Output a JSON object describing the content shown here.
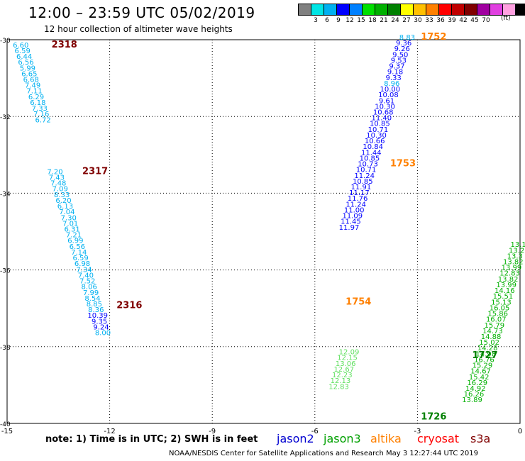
{
  "header": {
    "title": "12:00 – 23:59 UTC 05/02/2019",
    "subtitle": "12 hour collection of altimeter wave heights"
  },
  "legend": {
    "unit": "(ft)",
    "colors": [
      "#808080",
      "#00e5e5",
      "#00b0f0",
      "#0000ff",
      "#0080ff",
      "#00e000",
      "#00b000",
      "#008000",
      "#ffff00",
      "#ffc000",
      "#ff8000",
      "#ff0000",
      "#c00000",
      "#800000",
      "#a000a0",
      "#e040e0",
      "#ffa0e0",
      "#000000"
    ],
    "labels": [
      "3",
      "6",
      "9",
      "12",
      "15",
      "18",
      "21",
      "24",
      "27",
      "30",
      "33",
      "36",
      "39",
      "42",
      "45",
      "70"
    ]
  },
  "chart_data": {
    "type": "scatter",
    "xlim": [
      -15,
      0
    ],
    "ylim": [
      -40,
      -30
    ],
    "x_ticks": [
      "-15",
      "-12",
      "-9",
      "-6",
      "-3",
      "0"
    ],
    "y_ticks": [
      "-30",
      "-32",
      "-34",
      "-36",
      "-38",
      "-40"
    ],
    "grid": true,
    "track_labels": [
      {
        "text": "2318",
        "x": -13.7,
        "y": -30.2,
        "color": "#800000"
      },
      {
        "text": "2317",
        "x": -12.8,
        "y": -33.5,
        "color": "#800000"
      },
      {
        "text": "2316",
        "x": -11.8,
        "y": -37.0,
        "color": "#800000"
      },
      {
        "text": "1752",
        "x": -2.9,
        "y": -30.0,
        "color": "#ff8000"
      },
      {
        "text": "1753",
        "x": -3.8,
        "y": -33.3,
        "color": "#ff8000"
      },
      {
        "text": "1754",
        "x": -5.1,
        "y": -36.9,
        "color": "#ff8000"
      },
      {
        "text": "1727",
        "x": -1.4,
        "y": -38.3,
        "color": "#008000"
      },
      {
        "text": "1726",
        "x": -2.9,
        "y": -39.9,
        "color": "#008000"
      }
    ],
    "series": [
      {
        "name": "s3a",
        "color_hi": "#0000ff",
        "color_lo": "#00b0f0",
        "points": [
          {
            "x": -14.6,
            "y": -30.2,
            "v": "6.60"
          },
          {
            "x": -14.55,
            "y": -30.35,
            "v": "6.59"
          },
          {
            "x": -14.5,
            "y": -30.5,
            "v": "6.44"
          },
          {
            "x": -14.45,
            "y": -30.65,
            "v": "6.56"
          },
          {
            "x": -14.4,
            "y": -30.8,
            "v": "5.99"
          },
          {
            "x": -14.35,
            "y": -30.95,
            "v": "6.65"
          },
          {
            "x": -14.3,
            "y": -31.1,
            "v": "6.68"
          },
          {
            "x": -14.25,
            "y": -31.25,
            "v": "7.49"
          },
          {
            "x": -14.2,
            "y": -31.4,
            "v": "7.11"
          },
          {
            "x": -14.15,
            "y": -31.55,
            "v": "6.29"
          },
          {
            "x": -14.1,
            "y": -31.7,
            "v": "6.18"
          },
          {
            "x": -14.05,
            "y": -31.85,
            "v": "7.33"
          },
          {
            "x": -14.0,
            "y": -32.0,
            "v": "7.16"
          },
          {
            "x": -13.95,
            "y": -32.15,
            "v": "6.72"
          },
          {
            "x": -13.6,
            "y": -33.5,
            "v": "7.20"
          },
          {
            "x": -13.55,
            "y": -33.65,
            "v": "7.43"
          },
          {
            "x": -13.5,
            "y": -33.8,
            "v": "7.48"
          },
          {
            "x": -13.45,
            "y": -33.95,
            "v": "7.09"
          },
          {
            "x": -13.4,
            "y": -34.1,
            "v": "8.33"
          },
          {
            "x": -13.35,
            "y": -34.25,
            "v": "6.20"
          },
          {
            "x": -13.3,
            "y": -34.4,
            "v": "6.13"
          },
          {
            "x": -13.25,
            "y": -34.55,
            "v": "7.04"
          },
          {
            "x": -13.2,
            "y": -34.7,
            "v": "7.30"
          },
          {
            "x": -13.15,
            "y": -34.85,
            "v": "7.01"
          },
          {
            "x": -13.1,
            "y": -35.0,
            "v": "6.31"
          },
          {
            "x": -13.05,
            "y": -35.15,
            "v": "7.21"
          },
          {
            "x": -13.0,
            "y": -35.3,
            "v": "6.99"
          },
          {
            "x": -12.95,
            "y": -35.45,
            "v": "6.56"
          },
          {
            "x": -12.9,
            "y": -35.6,
            "v": "7.14"
          },
          {
            "x": -12.85,
            "y": -35.75,
            "v": "6.59"
          },
          {
            "x": -12.8,
            "y": -35.9,
            "v": "6.98"
          },
          {
            "x": -12.75,
            "y": -36.05,
            "v": "7.34"
          },
          {
            "x": -12.7,
            "y": -36.2,
            "v": "7.40"
          },
          {
            "x": -12.65,
            "y": -36.35,
            "v": "7.52"
          },
          {
            "x": -12.6,
            "y": -36.5,
            "v": "8.06"
          },
          {
            "x": -12.55,
            "y": -36.65,
            "v": "7.99"
          },
          {
            "x": -12.5,
            "y": -36.8,
            "v": "8.54"
          },
          {
            "x": -12.45,
            "y": -36.95,
            "v": "8.85"
          },
          {
            "x": -12.4,
            "y": -37.1,
            "v": "8.36"
          },
          {
            "x": -12.35,
            "y": -37.25,
            "v": "10.39"
          },
          {
            "x": -12.3,
            "y": -37.4,
            "v": "9.35"
          },
          {
            "x": -12.25,
            "y": -37.55,
            "v": "9.24"
          },
          {
            "x": -12.2,
            "y": -37.7,
            "v": "8.00"
          }
        ]
      },
      {
        "name": "altika",
        "color_hi": "#0000ff",
        "color_lo": "#00b0f0",
        "points": [
          {
            "x": -3.3,
            "y": -30.0,
            "v": "8.83"
          },
          {
            "x": -3.4,
            "y": -30.15,
            "v": "9.36"
          },
          {
            "x": -3.45,
            "y": -30.3,
            "v": "9.26"
          },
          {
            "x": -3.5,
            "y": -30.45,
            "v": "9.50"
          },
          {
            "x": -3.55,
            "y": -30.6,
            "v": "9.53"
          },
          {
            "x": -3.6,
            "y": -30.75,
            "v": "9.37"
          },
          {
            "x": -3.65,
            "y": -30.9,
            "v": "9.18"
          },
          {
            "x": -3.7,
            "y": -31.05,
            "v": "9.33"
          },
          {
            "x": -3.75,
            "y": -31.2,
            "v": "8.96"
          },
          {
            "x": -3.8,
            "y": -31.35,
            "v": "10.00"
          },
          {
            "x": -3.85,
            "y": -31.5,
            "v": "10.08"
          },
          {
            "x": -3.9,
            "y": -31.65,
            "v": "9.61"
          },
          {
            "x": -3.95,
            "y": -31.8,
            "v": "10.30"
          },
          {
            "x": -4.0,
            "y": -31.95,
            "v": "10.68"
          },
          {
            "x": -4.05,
            "y": -32.1,
            "v": "11.40"
          },
          {
            "x": -4.1,
            "y": -32.25,
            "v": "10.85"
          },
          {
            "x": -4.15,
            "y": -32.4,
            "v": "10.71"
          },
          {
            "x": -4.2,
            "y": -32.55,
            "v": "10.30"
          },
          {
            "x": -4.25,
            "y": -32.7,
            "v": "10.66"
          },
          {
            "x": -4.3,
            "y": -32.85,
            "v": "10.84"
          },
          {
            "x": -4.35,
            "y": -33.0,
            "v": "11.44"
          },
          {
            "x": -4.4,
            "y": -33.15,
            "v": "10.85"
          },
          {
            "x": -4.45,
            "y": -33.3,
            "v": "10.73"
          },
          {
            "x": -4.5,
            "y": -33.45,
            "v": "10.71"
          },
          {
            "x": -4.55,
            "y": -33.6,
            "v": "11.24"
          },
          {
            "x": -4.6,
            "y": -33.75,
            "v": "10.85"
          },
          {
            "x": -4.65,
            "y": -33.9,
            "v": "11.91"
          },
          {
            "x": -4.7,
            "y": -34.05,
            "v": "11.17"
          },
          {
            "x": -4.75,
            "y": -34.2,
            "v": "11.76"
          },
          {
            "x": -4.8,
            "y": -34.35,
            "v": "11.24"
          },
          {
            "x": -4.85,
            "y": -34.5,
            "v": "11.00"
          },
          {
            "x": -4.9,
            "y": -34.65,
            "v": "11.09"
          },
          {
            "x": -4.95,
            "y": -34.8,
            "v": "11.45"
          },
          {
            "x": -5.0,
            "y": -34.95,
            "v": "11.97"
          }
        ]
      },
      {
        "name": "jason3",
        "color_hi": "#00b000",
        "color_lo": "#60e060",
        "points": [
          {
            "x": -0.05,
            "y": -35.4,
            "v": "13.1"
          },
          {
            "x": -0.1,
            "y": -35.55,
            "v": "13.2"
          },
          {
            "x": -0.15,
            "y": -35.7,
            "v": "13.3"
          },
          {
            "x": -0.2,
            "y": -35.85,
            "v": "13.82"
          },
          {
            "x": -0.25,
            "y": -36.0,
            "v": "13.99"
          },
          {
            "x": -0.3,
            "y": -36.15,
            "v": "12.83"
          },
          {
            "x": -0.35,
            "y": -36.3,
            "v": "13.82"
          },
          {
            "x": -0.4,
            "y": -36.45,
            "v": "13.99"
          },
          {
            "x": -0.45,
            "y": -36.6,
            "v": "14.16"
          },
          {
            "x": -0.5,
            "y": -36.75,
            "v": "15.51"
          },
          {
            "x": -0.55,
            "y": -36.9,
            "v": "15.13"
          },
          {
            "x": -0.6,
            "y": -37.05,
            "v": "16.05"
          },
          {
            "x": -0.65,
            "y": -37.2,
            "v": "15.86"
          },
          {
            "x": -0.7,
            "y": -37.35,
            "v": "16.07"
          },
          {
            "x": -0.75,
            "y": -37.5,
            "v": "15.79"
          },
          {
            "x": -0.8,
            "y": -37.65,
            "v": "14.73"
          },
          {
            "x": -0.85,
            "y": -37.8,
            "v": "14.88"
          },
          {
            "x": -0.9,
            "y": -37.95,
            "v": "15.02"
          },
          {
            "x": -0.95,
            "y": -38.1,
            "v": "14.28"
          },
          {
            "x": -1.0,
            "y": -38.25,
            "v": "14.98"
          },
          {
            "x": -1.05,
            "y": -38.4,
            "v": "16.76"
          },
          {
            "x": -1.1,
            "y": -38.55,
            "v": "15.29"
          },
          {
            "x": -1.15,
            "y": -38.7,
            "v": "14.67"
          },
          {
            "x": -1.2,
            "y": -38.85,
            "v": "15.42"
          },
          {
            "x": -1.25,
            "y": -39.0,
            "v": "16.29"
          },
          {
            "x": -1.3,
            "y": -39.15,
            "v": "14.92"
          },
          {
            "x": -1.35,
            "y": -39.3,
            "v": "16.26"
          },
          {
            "x": -1.4,
            "y": -39.45,
            "v": "13.89"
          }
        ]
      },
      {
        "name": "jason3-b",
        "color_hi": "#60e060",
        "color_lo": "#60e060",
        "points": [
          {
            "x": -5.0,
            "y": -38.2,
            "v": "12.09"
          },
          {
            "x": -5.05,
            "y": -38.35,
            "v": "12.15"
          },
          {
            "x": -5.1,
            "y": -38.5,
            "v": "13.06"
          },
          {
            "x": -5.15,
            "y": -38.65,
            "v": "12.67"
          },
          {
            "x": -5.2,
            "y": -38.8,
            "v": "12.23"
          },
          {
            "x": -5.25,
            "y": -38.95,
            "v": "12.13"
          },
          {
            "x": -5.3,
            "y": -39.1,
            "v": "12.83"
          }
        ]
      }
    ]
  },
  "footer": {
    "note": "note:  1) Time is in UTC;  2) SWH is in feet",
    "satellites": [
      {
        "name": "jason2",
        "color": "#0000d0"
      },
      {
        "name": "jason3",
        "color": "#00a000"
      },
      {
        "name": "altika",
        "color": "#ff8000"
      },
      {
        "name": "cryosat",
        "color": "#ff0000"
      },
      {
        "name": "s3a",
        "color": "#800000"
      }
    ],
    "credit": "NOAA/NESDIS Center for Satellite Applications and Research    May  3 12:27:44 UTC 2019"
  }
}
